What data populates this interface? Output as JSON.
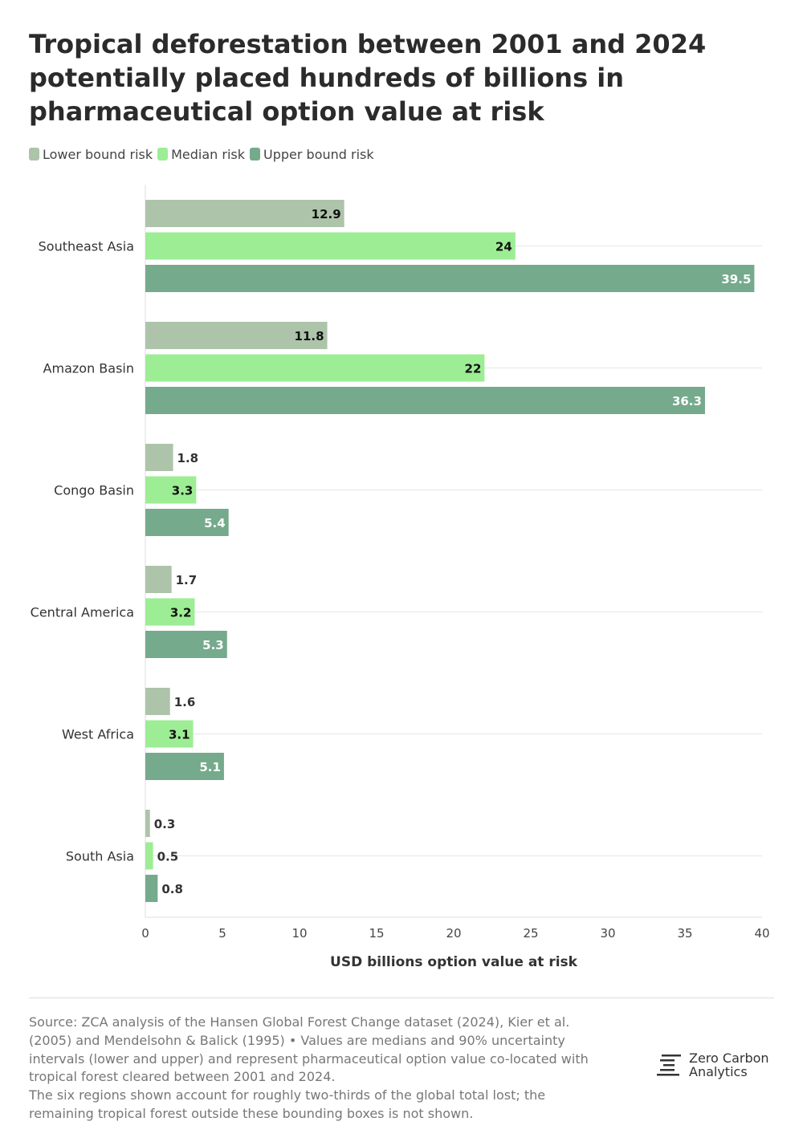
{
  "title_lines": [
    "Tropical deforestation between 2001 and 2024",
    "potentially placed hundreds of billions in",
    "pharmaceutical option value at risk"
  ],
  "colors": {
    "lower": "#adc4aa",
    "median": "#9ded95",
    "upper": "#75aa8c",
    "grid": "#e6e6e6",
    "text": "#333333"
  },
  "chart_data": {
    "type": "bar",
    "orientation": "horizontal",
    "categories": [
      "Southeast Asia",
      "Amazon Basin",
      "Congo Basin",
      "Central America",
      "West Africa",
      "South Asia"
    ],
    "series": [
      {
        "name": "Lower bound risk",
        "values": [
          12.9,
          11.8,
          1.8,
          1.7,
          1.6,
          0.3
        ]
      },
      {
        "name": "Median risk",
        "values": [
          24,
          22,
          3.3,
          3.2,
          3.1,
          0.5
        ]
      },
      {
        "name": "Upper bound risk",
        "values": [
          39.5,
          36.3,
          5.4,
          5.3,
          5.1,
          0.8
        ]
      }
    ],
    "value_labels": [
      [
        "12.9",
        "11.8",
        "1.8",
        "1.7",
        "1.6",
        "0.3"
      ],
      [
        "24",
        "22",
        "3.3",
        "3.2",
        "3.1",
        "0.5"
      ],
      [
        "39.5",
        "36.3",
        "5.4",
        "5.3",
        "5.1",
        "0.8"
      ]
    ],
    "xlabel": "USD billions option value at risk",
    "ylabel": "",
    "xlim": [
      0,
      40
    ],
    "xticks": [
      0,
      5,
      10,
      15,
      20,
      25,
      30,
      35,
      40
    ],
    "grid": true,
    "legend": "top-left"
  },
  "footer": {
    "source_lines": [
      "Source: ZCA analysis of the Hansen Global Forest Change dataset (2024), Kier et al.",
      "(2005) and Mendelsohn & Balick (1995) • Values are medians and 90% uncertainty",
      "intervals (lower and upper) and represent pharmaceutical option value co-located with",
      "tropical forest cleared between 2001 and 2024.",
      "The six regions shown account for roughly two-thirds of the global total lost; the",
      "remaining tropical forest outside these bounding boxes is not shown."
    ],
    "brand_lines": [
      "Zero Carbon",
      "Analytics"
    ]
  }
}
